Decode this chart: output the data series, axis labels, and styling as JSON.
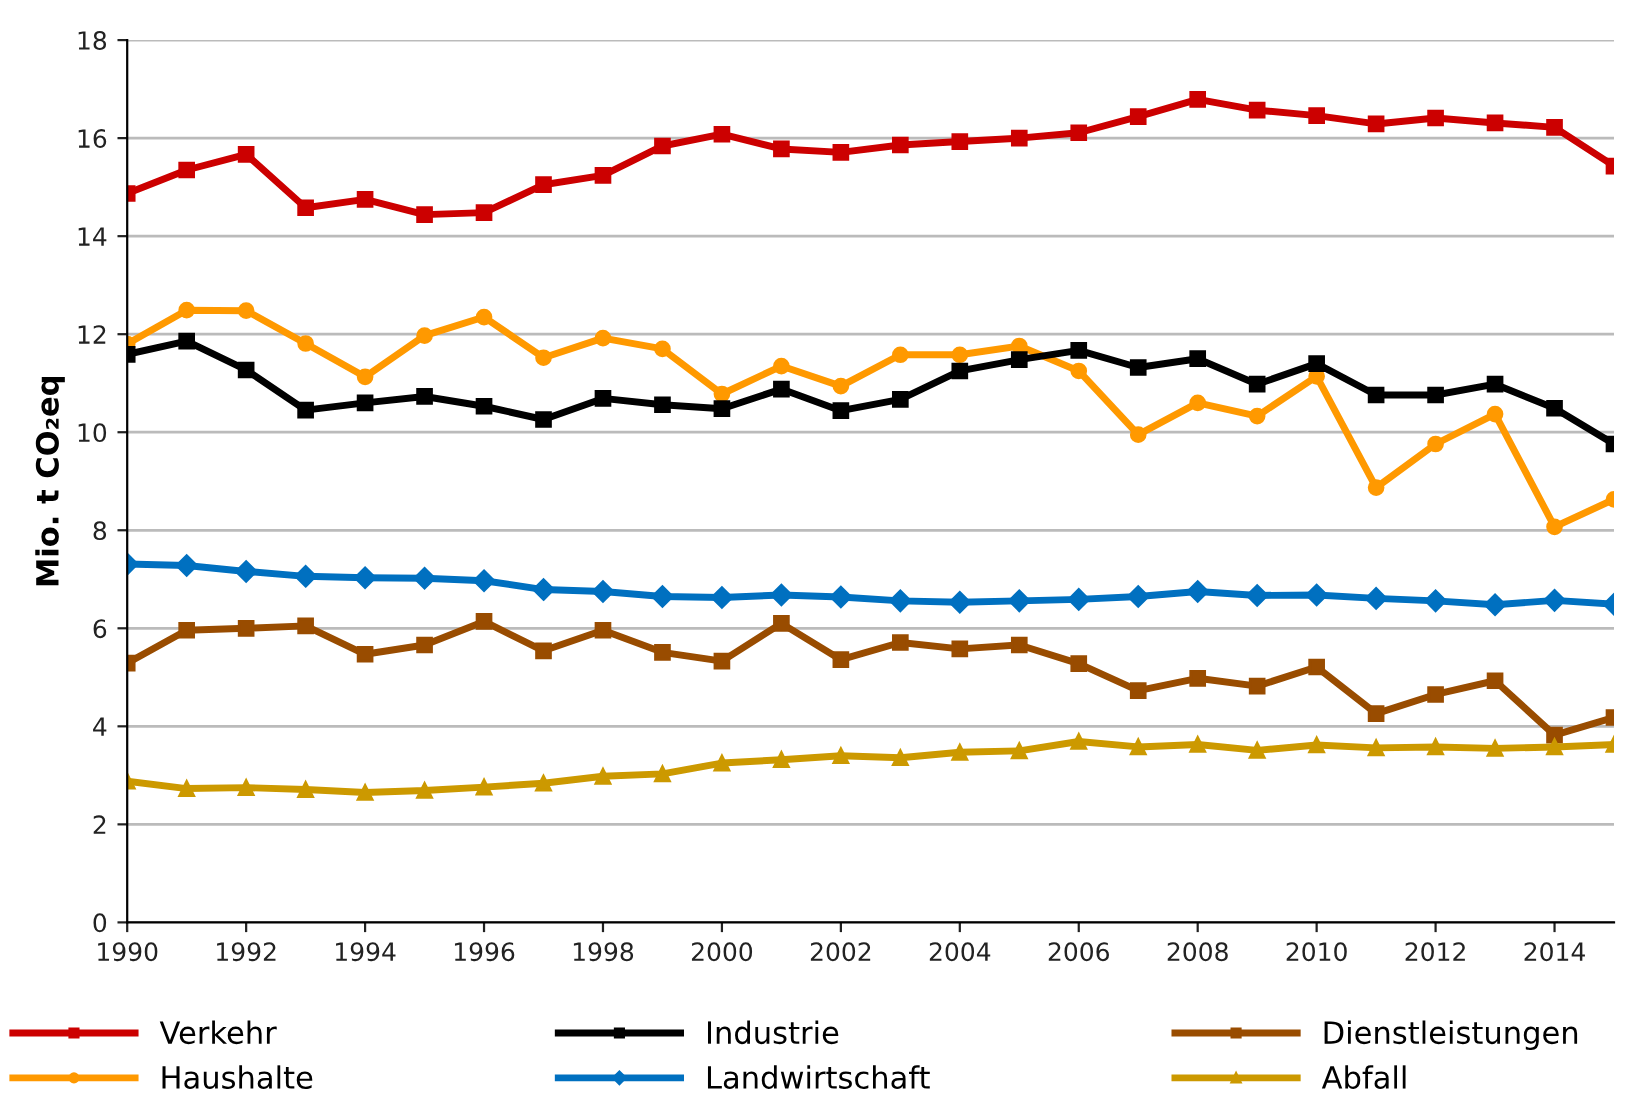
{
  "chart_data": {
    "type": "line",
    "ylabel": "Mio. t CO₂eq",
    "x": [
      1990,
      1991,
      1992,
      1993,
      1994,
      1995,
      1996,
      1997,
      1998,
      1999,
      2000,
      2001,
      2002,
      2003,
      2004,
      2005,
      2006,
      2007,
      2008,
      2009,
      2010,
      2011,
      2012,
      2013,
      2014,
      2015
    ],
    "series": [
      {
        "name": "Verkehr",
        "color": "#cc0000",
        "marker": "square",
        "values": [
          14.87,
          15.35,
          15.67,
          14.58,
          14.75,
          14.44,
          14.48,
          15.05,
          15.24,
          15.84,
          16.08,
          15.78,
          15.71,
          15.86,
          15.93,
          16.0,
          16.11,
          16.44,
          16.79,
          16.57,
          16.46,
          16.29,
          16.41,
          16.31,
          16.22,
          15.43
        ]
      },
      {
        "name": "Haushalte",
        "color": "#ff9900",
        "marker": "circle",
        "values": [
          11.8,
          12.49,
          12.48,
          11.81,
          11.13,
          11.97,
          12.35,
          11.52,
          11.92,
          11.7,
          10.78,
          11.35,
          10.94,
          11.58,
          11.58,
          11.76,
          11.25,
          9.95,
          10.6,
          10.33,
          11.14,
          8.87,
          9.76,
          10.37,
          8.07,
          8.63
        ]
      },
      {
        "name": "Industrie",
        "color": "#000000",
        "marker": "square",
        "values": [
          11.59,
          11.86,
          11.27,
          10.45,
          10.6,
          10.73,
          10.53,
          10.26,
          10.69,
          10.56,
          10.48,
          10.88,
          10.44,
          10.67,
          11.25,
          11.48,
          11.67,
          11.32,
          11.5,
          10.98,
          11.4,
          10.76,
          10.76,
          10.98,
          10.49,
          9.76
        ]
      },
      {
        "name": "Landwirtschaft",
        "color": "#0070c0",
        "marker": "diamond",
        "values": [
          7.31,
          7.28,
          7.16,
          7.06,
          7.03,
          7.02,
          6.97,
          6.79,
          6.75,
          6.65,
          6.63,
          6.68,
          6.64,
          6.56,
          6.53,
          6.56,
          6.59,
          6.65,
          6.75,
          6.67,
          6.68,
          6.61,
          6.56,
          6.48,
          6.57,
          6.49
        ]
      },
      {
        "name": "Dienstleistungen",
        "color": "#994c00",
        "marker": "square",
        "values": [
          5.29,
          5.96,
          6.0,
          6.05,
          5.47,
          5.66,
          6.14,
          5.54,
          5.96,
          5.51,
          5.33,
          6.1,
          5.36,
          5.71,
          5.58,
          5.66,
          5.28,
          4.73,
          4.98,
          4.82,
          5.21,
          4.26,
          4.65,
          4.93,
          3.82,
          4.18
        ]
      },
      {
        "name": "Abfall",
        "color": "#cc9900",
        "marker": "triangle",
        "values": [
          2.88,
          2.73,
          2.75,
          2.71,
          2.65,
          2.69,
          2.76,
          2.84,
          2.98,
          3.03,
          3.25,
          3.32,
          3.4,
          3.36,
          3.47,
          3.5,
          3.69,
          3.58,
          3.63,
          3.51,
          3.62,
          3.56,
          3.58,
          3.55,
          3.58,
          3.63
        ]
      }
    ],
    "xlim": [
      1990,
      2015
    ],
    "xticks": [
      1990,
      1992,
      1994,
      1996,
      1998,
      2000,
      2002,
      2004,
      2006,
      2008,
      2010,
      2012,
      2014
    ],
    "ylim": [
      0,
      18
    ],
    "yticks": [
      0,
      2,
      4,
      6,
      8,
      10,
      12,
      14,
      16,
      18
    ],
    "grid": "y",
    "legend": "bottom",
    "line_style": "solid"
  }
}
